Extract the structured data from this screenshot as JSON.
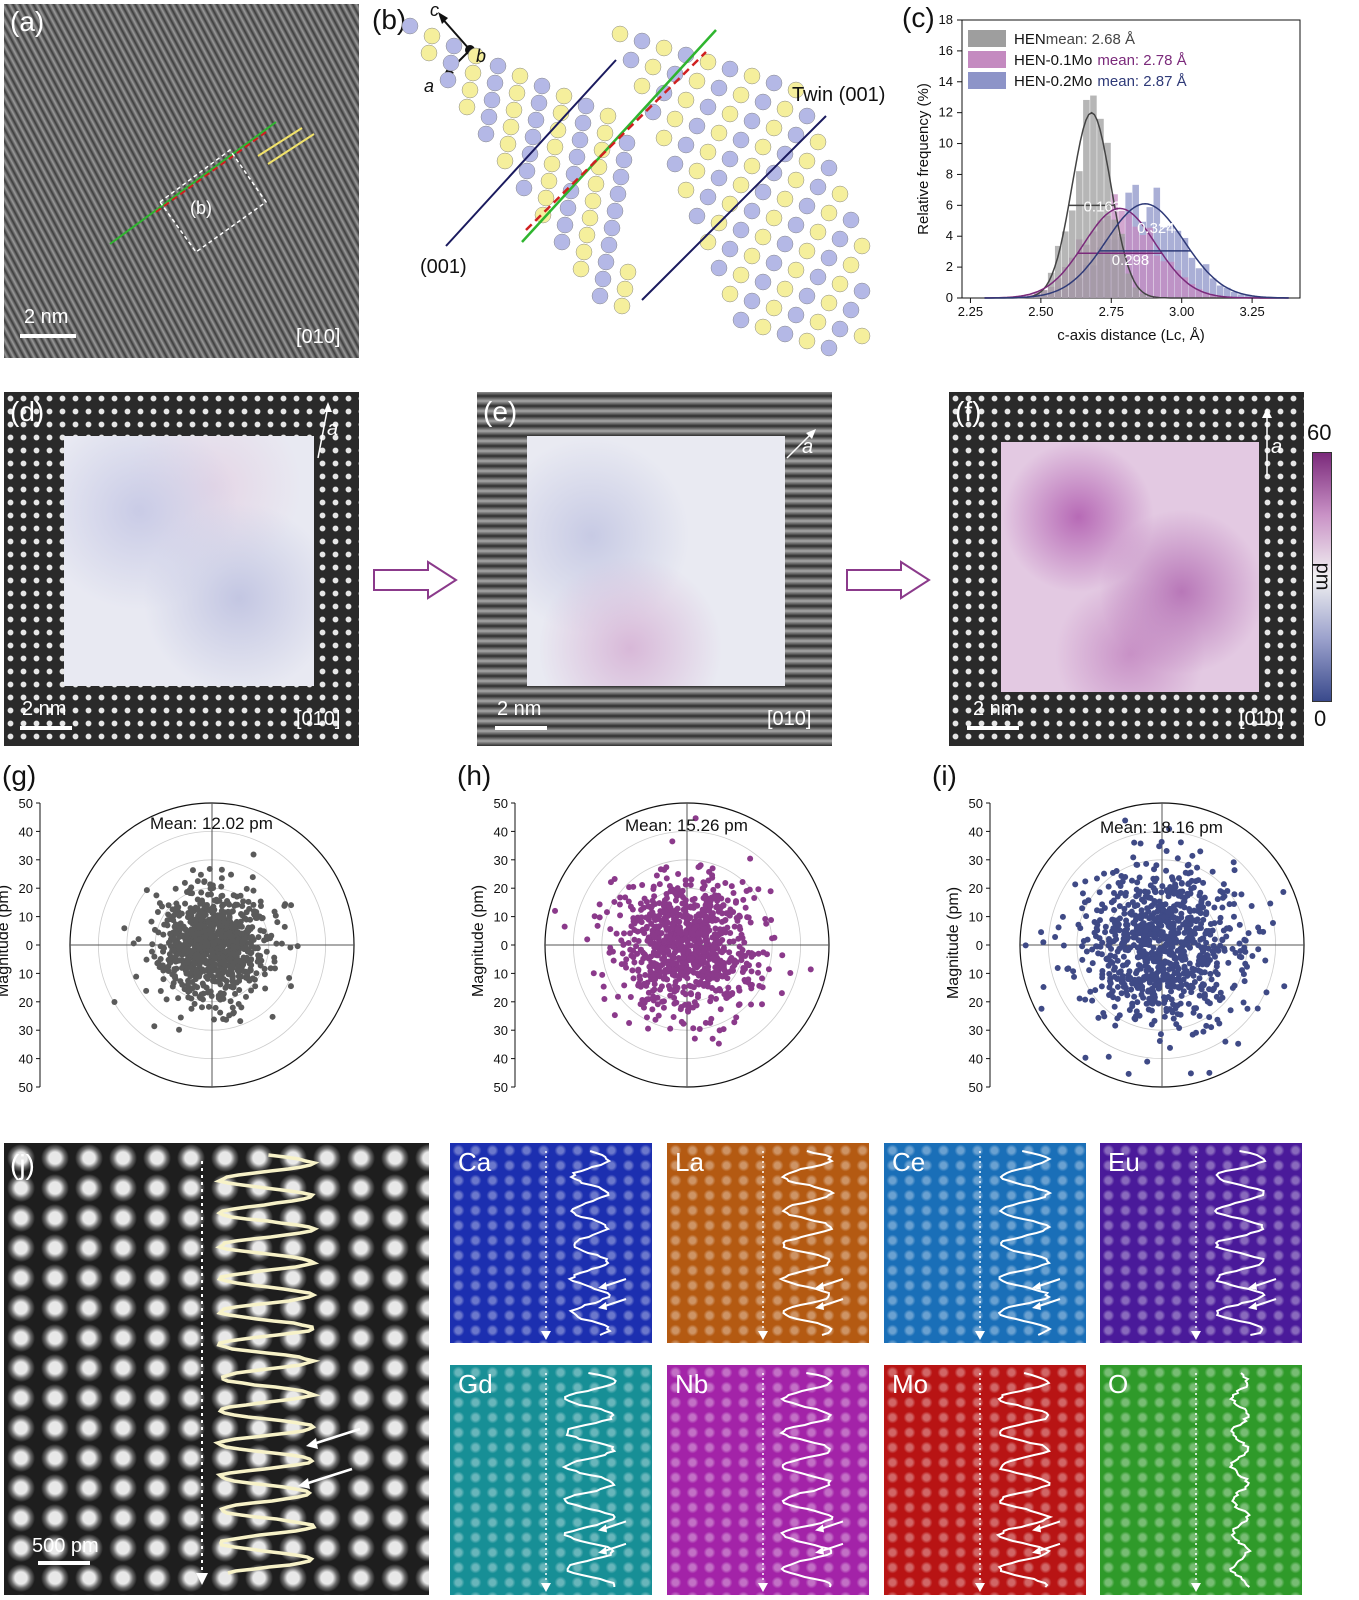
{
  "panels": {
    "a": {
      "label": "(a)",
      "scalebar": "2 nm",
      "zone": "[010]",
      "box_label": "(b)"
    },
    "b": {
      "label": "(b)",
      "axes": {
        "c": "c",
        "b": "b",
        "a": "a"
      },
      "twin_label": "Twin (001)",
      "plane_label": "(001)"
    },
    "c": {
      "label": "(c)"
    },
    "d": {
      "label": "(d)",
      "scalebar": "2 nm",
      "zone": "[010]",
      "axis": "a"
    },
    "e": {
      "label": "(e)",
      "scalebar": "2 nm",
      "zone": "[010]",
      "axis": "a"
    },
    "f": {
      "label": "(f)",
      "scalebar": "2 nm",
      "zone": "[010]",
      "axis": "a"
    },
    "colorbar": {
      "max": "60",
      "min": "0",
      "unit": "pm",
      "colors": [
        "#7b2a7b",
        "#f2f2f2",
        "#3a4a8c"
      ]
    },
    "g": {
      "label": "(g)",
      "mean": "Mean: 12.02 pm",
      "color": "#5a5a5a"
    },
    "h": {
      "label": "(h)",
      "mean": "Mean: 15.26 pm",
      "color": "#8b3a8b"
    },
    "i": {
      "label": "(i)",
      "mean": "Mean: 18.16 pm",
      "color": "#3f4a86"
    },
    "polar_ylabel": "Magnitude (pm)",
    "polar_ticks": [
      "50",
      "40",
      "30",
      "20",
      "10",
      "0",
      "10",
      "20",
      "30",
      "40",
      "50"
    ],
    "j": {
      "label": "(j)",
      "scalebar": "500 pm"
    },
    "elements": [
      {
        "name": "Ca",
        "color": "#1c2fb0"
      },
      {
        "name": "La",
        "color": "#b45a12"
      },
      {
        "name": "Ce",
        "color": "#1a6fb8"
      },
      {
        "name": "Eu",
        "color": "#4a1a9a"
      },
      {
        "name": "Gd",
        "color": "#178f96"
      },
      {
        "name": "Nb",
        "color": "#a323a8"
      },
      {
        "name": "Mo",
        "color": "#b81414"
      },
      {
        "name": "O",
        "color": "#2f9a2a"
      }
    ]
  },
  "chart_data": {
    "type": "bar",
    "title": "",
    "xlabel": "c-axis distance (Lc, Å)",
    "ylabel": "Relative frequency (%)",
    "xlim": [
      2.22,
      3.42
    ],
    "ylim": [
      0,
      18
    ],
    "xticks": [
      "2.25",
      "2.50",
      "2.75",
      "3.00",
      "3.25"
    ],
    "yticks": [
      "0",
      "2",
      "4",
      "6",
      "8",
      "10",
      "12",
      "14",
      "16",
      "18"
    ],
    "bin_width": 0.025,
    "legend_position": "top-left",
    "series": [
      {
        "name": "HEN",
        "mean_label": "mean: 2.68 Å",
        "color": "#9e9e9e",
        "fwhm": "0.163",
        "mean": 2.68,
        "sigma": 0.069,
        "peak": 12.0,
        "values": [
          0.2,
          0.3,
          0.5,
          0.8,
          1.5,
          2.5,
          4.2,
          7.0,
          9.5,
          11.2,
          12.2,
          11.7,
          10.3,
          8.0,
          5.6,
          3.6,
          2.2,
          1.2,
          0.6,
          0.3
        ]
      },
      {
        "name": "HEN-0.1Mo",
        "mean_label": "mean: 2.78 Å",
        "color": "#c48ac0",
        "fwhm": "0.298",
        "mean": 2.78,
        "sigma": 0.127,
        "peak": 5.8
      },
      {
        "name": "HEN-0.2Mo",
        "mean_label": "mean: 2.87 Å",
        "color": "#8d94c8",
        "fwhm": "0.324",
        "mean": 2.87,
        "sigma": 0.138,
        "peak": 6.1
      }
    ]
  }
}
